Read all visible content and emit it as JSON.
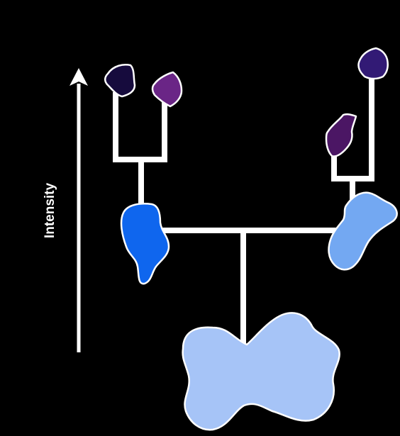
{
  "axis": {
    "label": "Intensity"
  },
  "colors": {
    "background": "#000000",
    "lines": "#ffffff",
    "root_blob": "#a6c4f7",
    "mid_left_blob": "#0f66ee",
    "mid_right_blob": "#73a8f2",
    "leaf_dark_navy": "#160b3d",
    "leaf_purple": "#6a2586",
    "leaf_indigo": "#321a75",
    "leaf_plum": "#4b1664"
  },
  "nodes": [
    {
      "id": "root",
      "level": 0,
      "color_key": "root_blob"
    },
    {
      "id": "mid-left",
      "level": 1,
      "color_key": "mid_left_blob"
    },
    {
      "id": "mid-right",
      "level": 1,
      "color_key": "mid_right_blob"
    },
    {
      "id": "leaf-1",
      "level": 2,
      "parent": "mid-left",
      "color_key": "leaf_dark_navy"
    },
    {
      "id": "leaf-2",
      "level": 2,
      "parent": "mid-left",
      "color_key": "leaf_purple"
    },
    {
      "id": "leaf-3",
      "level": 2,
      "parent": "mid-right",
      "color_key": "leaf_plum"
    },
    {
      "id": "leaf-4",
      "level": 2,
      "parent": "mid-right",
      "color_key": "leaf_indigo"
    }
  ]
}
